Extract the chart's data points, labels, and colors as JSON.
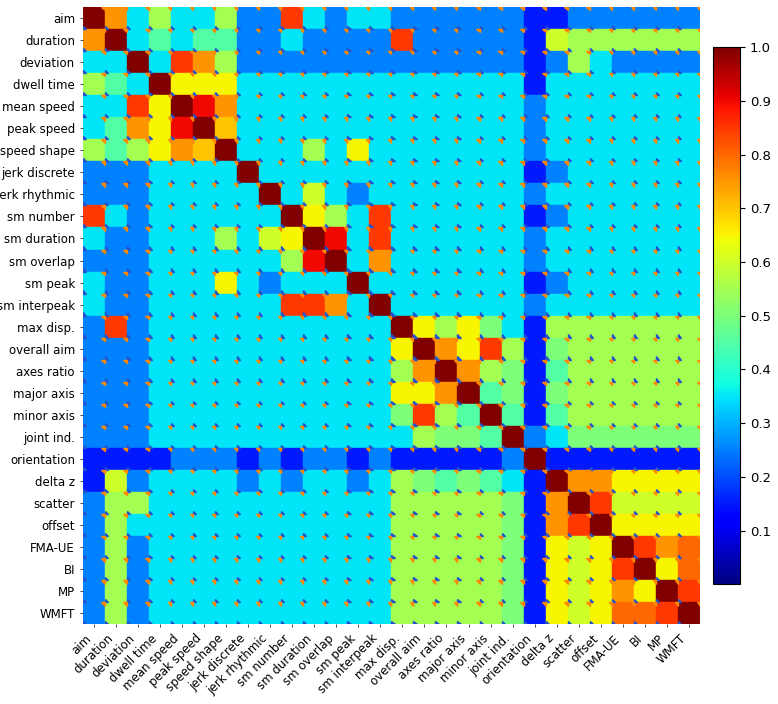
{
  "labels": [
    "aim",
    "duration",
    "deviation",
    "dwell time",
    "mean speed",
    "peak speed",
    "speed shape",
    "jerk discrete",
    "jerk rhythmic",
    "sm number",
    "sm duration",
    "sm overlap",
    "sm peak",
    "sm interpeak",
    "max disp.",
    "overall aim",
    "axes ratio",
    "major axis",
    "minor axis",
    "joint ind.",
    "orientation",
    "delta z",
    "scatter",
    "offset",
    "FMA-UE",
    "BI",
    "MP",
    "WMFT"
  ],
  "matrix": [
    [
      1.0,
      0.75,
      0.35,
      0.55,
      0.35,
      0.35,
      0.55,
      0.25,
      0.25,
      0.85,
      0.35,
      0.25,
      0.35,
      0.35,
      0.25,
      0.25,
      0.25,
      0.25,
      0.25,
      0.25,
      0.15,
      0.15,
      0.25,
      0.25,
      0.25,
      0.25,
      0.25,
      0.25
    ],
    [
      0.75,
      1.0,
      0.35,
      0.45,
      0.35,
      0.45,
      0.45,
      0.25,
      0.25,
      0.35,
      0.25,
      0.25,
      0.25,
      0.25,
      0.85,
      0.25,
      0.25,
      0.25,
      0.25,
      0.25,
      0.15,
      0.6,
      0.55,
      0.55,
      0.55,
      0.55,
      0.55,
      0.55
    ],
    [
      0.35,
      0.35,
      1.0,
      0.35,
      0.85,
      0.75,
      0.55,
      0.25,
      0.25,
      0.25,
      0.25,
      0.25,
      0.25,
      0.25,
      0.25,
      0.25,
      0.25,
      0.25,
      0.25,
      0.25,
      0.15,
      0.25,
      0.55,
      0.35,
      0.25,
      0.25,
      0.25,
      0.25
    ],
    [
      0.55,
      0.45,
      0.35,
      1.0,
      0.65,
      0.65,
      0.65,
      0.35,
      0.35,
      0.35,
      0.35,
      0.35,
      0.35,
      0.35,
      0.35,
      0.35,
      0.35,
      0.35,
      0.35,
      0.35,
      0.15,
      0.35,
      0.35,
      0.35,
      0.35,
      0.35,
      0.35,
      0.35
    ],
    [
      0.35,
      0.35,
      0.85,
      0.65,
      1.0,
      0.9,
      0.75,
      0.35,
      0.35,
      0.35,
      0.35,
      0.35,
      0.35,
      0.35,
      0.35,
      0.35,
      0.35,
      0.35,
      0.35,
      0.35,
      0.25,
      0.35,
      0.35,
      0.35,
      0.35,
      0.35,
      0.35,
      0.35
    ],
    [
      0.35,
      0.45,
      0.75,
      0.65,
      0.9,
      1.0,
      0.7,
      0.35,
      0.35,
      0.35,
      0.35,
      0.35,
      0.35,
      0.35,
      0.35,
      0.35,
      0.35,
      0.35,
      0.35,
      0.35,
      0.25,
      0.35,
      0.35,
      0.35,
      0.35,
      0.35,
      0.35,
      0.35
    ],
    [
      0.55,
      0.45,
      0.55,
      0.65,
      0.75,
      0.7,
      1.0,
      0.35,
      0.35,
      0.35,
      0.55,
      0.35,
      0.65,
      0.35,
      0.35,
      0.35,
      0.35,
      0.35,
      0.35,
      0.35,
      0.25,
      0.35,
      0.35,
      0.35,
      0.35,
      0.35,
      0.35,
      0.35
    ],
    [
      0.25,
      0.25,
      0.25,
      0.35,
      0.35,
      0.35,
      0.35,
      1.0,
      0.35,
      0.35,
      0.35,
      0.35,
      0.35,
      0.35,
      0.35,
      0.35,
      0.35,
      0.35,
      0.35,
      0.35,
      0.15,
      0.25,
      0.35,
      0.35,
      0.35,
      0.35,
      0.35,
      0.35
    ],
    [
      0.25,
      0.25,
      0.25,
      0.35,
      0.35,
      0.35,
      0.35,
      0.35,
      1.0,
      0.35,
      0.6,
      0.35,
      0.25,
      0.35,
      0.35,
      0.35,
      0.35,
      0.35,
      0.35,
      0.35,
      0.25,
      0.35,
      0.35,
      0.35,
      0.35,
      0.35,
      0.35,
      0.35
    ],
    [
      0.85,
      0.35,
      0.25,
      0.35,
      0.35,
      0.35,
      0.35,
      0.35,
      0.35,
      1.0,
      0.65,
      0.55,
      0.35,
      0.85,
      0.35,
      0.35,
      0.35,
      0.35,
      0.35,
      0.35,
      0.15,
      0.25,
      0.35,
      0.35,
      0.35,
      0.35,
      0.35,
      0.35
    ],
    [
      0.35,
      0.25,
      0.25,
      0.35,
      0.35,
      0.35,
      0.55,
      0.35,
      0.6,
      0.65,
      1.0,
      0.9,
      0.35,
      0.85,
      0.35,
      0.35,
      0.35,
      0.35,
      0.35,
      0.35,
      0.25,
      0.35,
      0.35,
      0.35,
      0.35,
      0.35,
      0.35,
      0.35
    ],
    [
      0.25,
      0.25,
      0.25,
      0.35,
      0.35,
      0.35,
      0.35,
      0.35,
      0.35,
      0.55,
      0.9,
      1.0,
      0.35,
      0.75,
      0.35,
      0.35,
      0.35,
      0.35,
      0.35,
      0.35,
      0.25,
      0.35,
      0.35,
      0.35,
      0.35,
      0.35,
      0.35,
      0.35
    ],
    [
      0.35,
      0.25,
      0.25,
      0.35,
      0.35,
      0.35,
      0.65,
      0.35,
      0.25,
      0.35,
      0.35,
      0.35,
      1.0,
      0.35,
      0.35,
      0.35,
      0.35,
      0.35,
      0.35,
      0.35,
      0.15,
      0.25,
      0.35,
      0.35,
      0.35,
      0.35,
      0.35,
      0.35
    ],
    [
      0.35,
      0.25,
      0.25,
      0.35,
      0.35,
      0.35,
      0.35,
      0.35,
      0.35,
      0.85,
      0.85,
      0.75,
      0.35,
      1.0,
      0.35,
      0.35,
      0.35,
      0.35,
      0.35,
      0.35,
      0.25,
      0.35,
      0.35,
      0.35,
      0.35,
      0.35,
      0.35,
      0.35
    ],
    [
      0.25,
      0.85,
      0.25,
      0.35,
      0.35,
      0.35,
      0.35,
      0.35,
      0.35,
      0.35,
      0.35,
      0.35,
      0.35,
      0.35,
      1.0,
      0.65,
      0.55,
      0.65,
      0.5,
      0.35,
      0.15,
      0.55,
      0.55,
      0.55,
      0.55,
      0.55,
      0.55,
      0.55
    ],
    [
      0.25,
      0.25,
      0.25,
      0.35,
      0.35,
      0.35,
      0.35,
      0.35,
      0.35,
      0.35,
      0.35,
      0.35,
      0.35,
      0.35,
      0.65,
      1.0,
      0.75,
      0.65,
      0.85,
      0.55,
      0.15,
      0.5,
      0.55,
      0.55,
      0.55,
      0.55,
      0.55,
      0.55
    ],
    [
      0.25,
      0.25,
      0.25,
      0.35,
      0.35,
      0.35,
      0.35,
      0.35,
      0.35,
      0.35,
      0.35,
      0.35,
      0.35,
      0.35,
      0.55,
      0.75,
      1.0,
      0.75,
      0.55,
      0.5,
      0.15,
      0.45,
      0.55,
      0.55,
      0.55,
      0.55,
      0.55,
      0.55
    ],
    [
      0.25,
      0.25,
      0.25,
      0.35,
      0.35,
      0.35,
      0.35,
      0.35,
      0.35,
      0.35,
      0.35,
      0.35,
      0.35,
      0.35,
      0.65,
      0.65,
      0.75,
      1.0,
      0.45,
      0.5,
      0.15,
      0.5,
      0.55,
      0.55,
      0.55,
      0.55,
      0.55,
      0.55
    ],
    [
      0.25,
      0.25,
      0.25,
      0.35,
      0.35,
      0.35,
      0.35,
      0.35,
      0.35,
      0.35,
      0.35,
      0.35,
      0.35,
      0.35,
      0.5,
      0.85,
      0.55,
      0.45,
      1.0,
      0.45,
      0.15,
      0.45,
      0.55,
      0.55,
      0.55,
      0.55,
      0.55,
      0.55
    ],
    [
      0.25,
      0.25,
      0.25,
      0.35,
      0.35,
      0.35,
      0.35,
      0.35,
      0.35,
      0.35,
      0.35,
      0.35,
      0.35,
      0.35,
      0.35,
      0.55,
      0.5,
      0.5,
      0.45,
      1.0,
      0.25,
      0.35,
      0.5,
      0.5,
      0.5,
      0.5,
      0.5,
      0.5
    ],
    [
      0.15,
      0.15,
      0.15,
      0.15,
      0.25,
      0.25,
      0.25,
      0.15,
      0.25,
      0.15,
      0.25,
      0.25,
      0.15,
      0.25,
      0.15,
      0.15,
      0.15,
      0.15,
      0.15,
      0.25,
      1.0,
      0.15,
      0.15,
      0.15,
      0.15,
      0.15,
      0.15,
      0.15
    ],
    [
      0.15,
      0.6,
      0.25,
      0.35,
      0.35,
      0.35,
      0.35,
      0.25,
      0.35,
      0.25,
      0.35,
      0.35,
      0.25,
      0.35,
      0.55,
      0.5,
      0.45,
      0.5,
      0.45,
      0.35,
      0.15,
      1.0,
      0.75,
      0.75,
      0.65,
      0.65,
      0.65,
      0.65
    ],
    [
      0.25,
      0.55,
      0.55,
      0.35,
      0.35,
      0.35,
      0.35,
      0.35,
      0.35,
      0.35,
      0.35,
      0.35,
      0.35,
      0.35,
      0.55,
      0.55,
      0.55,
      0.55,
      0.55,
      0.5,
      0.15,
      0.75,
      1.0,
      0.85,
      0.6,
      0.6,
      0.6,
      0.6
    ],
    [
      0.25,
      0.55,
      0.35,
      0.35,
      0.35,
      0.35,
      0.35,
      0.35,
      0.35,
      0.35,
      0.35,
      0.35,
      0.35,
      0.35,
      0.55,
      0.55,
      0.55,
      0.55,
      0.55,
      0.5,
      0.15,
      0.75,
      0.85,
      1.0,
      0.65,
      0.65,
      0.65,
      0.65
    ],
    [
      0.25,
      0.55,
      0.25,
      0.35,
      0.35,
      0.35,
      0.35,
      0.35,
      0.35,
      0.35,
      0.35,
      0.35,
      0.35,
      0.35,
      0.55,
      0.55,
      0.55,
      0.55,
      0.55,
      0.5,
      0.15,
      0.65,
      0.6,
      0.65,
      1.0,
      0.85,
      0.75,
      0.8
    ],
    [
      0.25,
      0.55,
      0.25,
      0.35,
      0.35,
      0.35,
      0.35,
      0.35,
      0.35,
      0.35,
      0.35,
      0.35,
      0.35,
      0.35,
      0.55,
      0.55,
      0.55,
      0.55,
      0.55,
      0.5,
      0.15,
      0.65,
      0.6,
      0.65,
      0.85,
      1.0,
      0.65,
      0.8
    ],
    [
      0.25,
      0.55,
      0.25,
      0.35,
      0.35,
      0.35,
      0.35,
      0.35,
      0.35,
      0.35,
      0.35,
      0.35,
      0.35,
      0.35,
      0.55,
      0.55,
      0.55,
      0.55,
      0.55,
      0.5,
      0.15,
      0.65,
      0.6,
      0.65,
      0.75,
      0.65,
      1.0,
      0.85
    ],
    [
      0.25,
      0.55,
      0.25,
      0.35,
      0.35,
      0.35,
      0.35,
      0.35,
      0.35,
      0.35,
      0.35,
      0.35,
      0.35,
      0.35,
      0.55,
      0.55,
      0.55,
      0.55,
      0.55,
      0.5,
      0.15,
      0.65,
      0.6,
      0.65,
      0.8,
      0.8,
      0.85,
      1.0
    ]
  ],
  "colormap": "jet",
  "vmin": 0.0,
  "vmax": 1.0,
  "figsize": [
    7.78,
    7.04
  ],
  "dpi": 100,
  "colorbar_ticks": [
    0.1,
    0.2,
    0.3,
    0.4,
    0.5,
    0.6,
    0.7,
    0.8,
    0.9,
    1.0
  ],
  "tri_upper_color": "#FF8800",
  "tri_lower_color": "#2255CC",
  "background_color": "#FFFFFF",
  "label_fontsize": 8.5,
  "colorbar_fontsize": 9.5,
  "tri_size": 0.15
}
